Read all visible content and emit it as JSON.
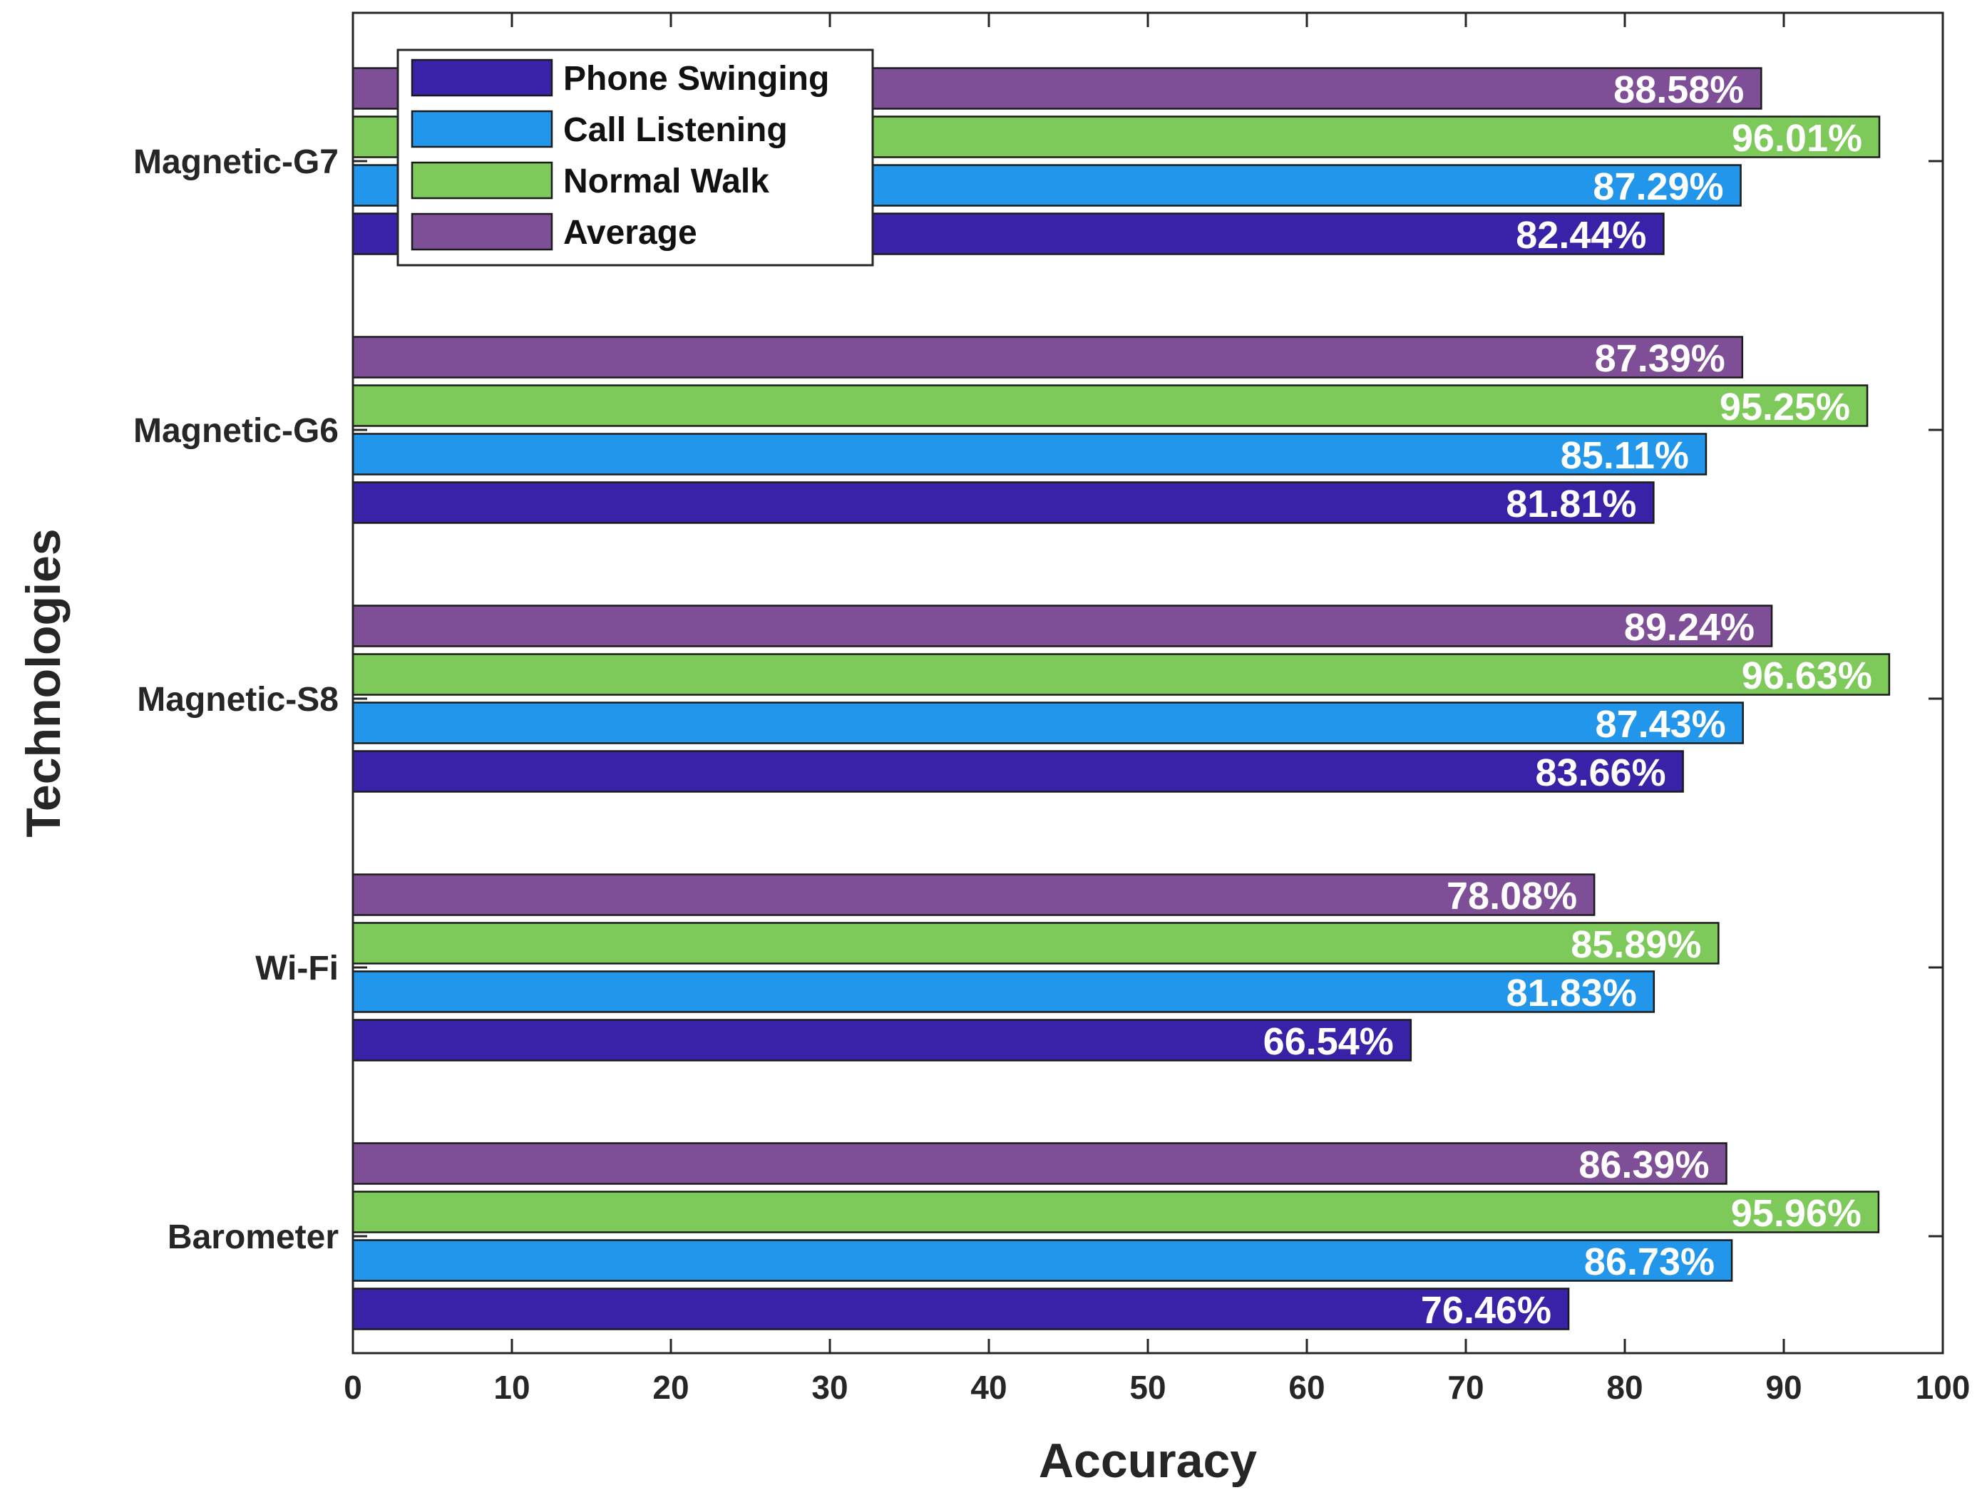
{
  "chart_data": {
    "type": "bar",
    "orientation": "horizontal",
    "title": "",
    "xlabel": "Accuracy",
    "ylabel": "Technologies",
    "xlim": [
      0,
      100
    ],
    "xticks": [
      0,
      10,
      20,
      30,
      40,
      50,
      60,
      70,
      80,
      90,
      100
    ],
    "grid": false,
    "legend_position": "top-left",
    "categories": [
      "Magnetic-G7",
      "Magnetic-G6",
      "Magnetic-S8",
      "Wi-Fi",
      "Barometer"
    ],
    "series": [
      {
        "name": "Phone Swinging",
        "color": "#3A22A8",
        "values": [
          82.44,
          81.81,
          83.66,
          66.54,
          76.46
        ],
        "labels": [
          "82.44%",
          "81.81%",
          "83.66%",
          "66.54%",
          "76.46%"
        ]
      },
      {
        "name": "Call Listening",
        "color": "#2196EA",
        "values": [
          87.29,
          85.11,
          87.43,
          81.83,
          86.73
        ],
        "labels": [
          "87.29%",
          "85.11%",
          "87.43%",
          "81.83%",
          "86.73%"
        ]
      },
      {
        "name": "Normal Walk",
        "color": "#7DC95A",
        "values": [
          96.01,
          95.25,
          96.63,
          85.89,
          95.96
        ],
        "labels": [
          "96.01%",
          "95.25%",
          "96.63%",
          "85.89%",
          "95.96%"
        ]
      },
      {
        "name": "Average",
        "color": "#7E4E96",
        "values": [
          88.58,
          87.39,
          89.24,
          78.08,
          86.39
        ],
        "labels": [
          "88.58%",
          "87.39%",
          "89.24%",
          "78.08%",
          "86.39%"
        ]
      }
    ]
  }
}
